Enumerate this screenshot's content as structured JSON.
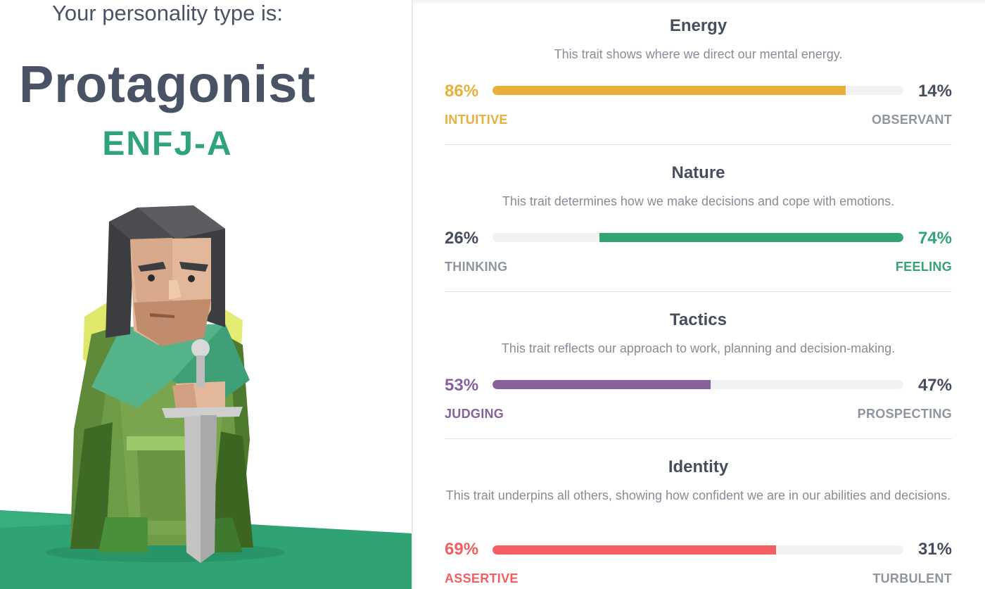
{
  "profile": {
    "intro": "Your personality type is:",
    "type_name": "Protagonist",
    "type_code": "ENFJ-A"
  },
  "traits": [
    {
      "title": "Energy",
      "description": "This trait shows where we direct our mental energy.",
      "left_pct": "86%",
      "right_pct": "14%",
      "left_label": "INTUITIVE",
      "right_label": "OBSERVANT",
      "dominant": "left",
      "fill_fraction": 0.86,
      "color": "#e8b03a"
    },
    {
      "title": "Nature",
      "description": "This trait determines how we make decisions and cope with emotions.",
      "left_pct": "26%",
      "right_pct": "74%",
      "left_label": "THINKING",
      "right_label": "FEELING",
      "dominant": "right",
      "fill_fraction": 0.74,
      "color": "#33a474"
    },
    {
      "title": "Tactics",
      "description": "This trait reflects our approach to work, planning and decision-making.",
      "left_pct": "53%",
      "right_pct": "47%",
      "left_label": "JUDGING",
      "right_label": "PROSPECTING",
      "dominant": "left",
      "fill_fraction": 0.53,
      "color": "#88619a"
    },
    {
      "title": "Identity",
      "description": "This trait underpins all others, showing how confident we are in our abilities and decisions.",
      "left_pct": "69%",
      "right_pct": "31%",
      "left_label": "ASSERTIVE",
      "right_label": "TURBULENT",
      "dominant": "left",
      "fill_fraction": 0.69,
      "color": "#f25e62"
    }
  ],
  "colors": {
    "heading": "#4a5366",
    "accent_green": "#2fa37a",
    "muted": "#8f949e"
  },
  "illustration": "protagonist-character-with-sword"
}
